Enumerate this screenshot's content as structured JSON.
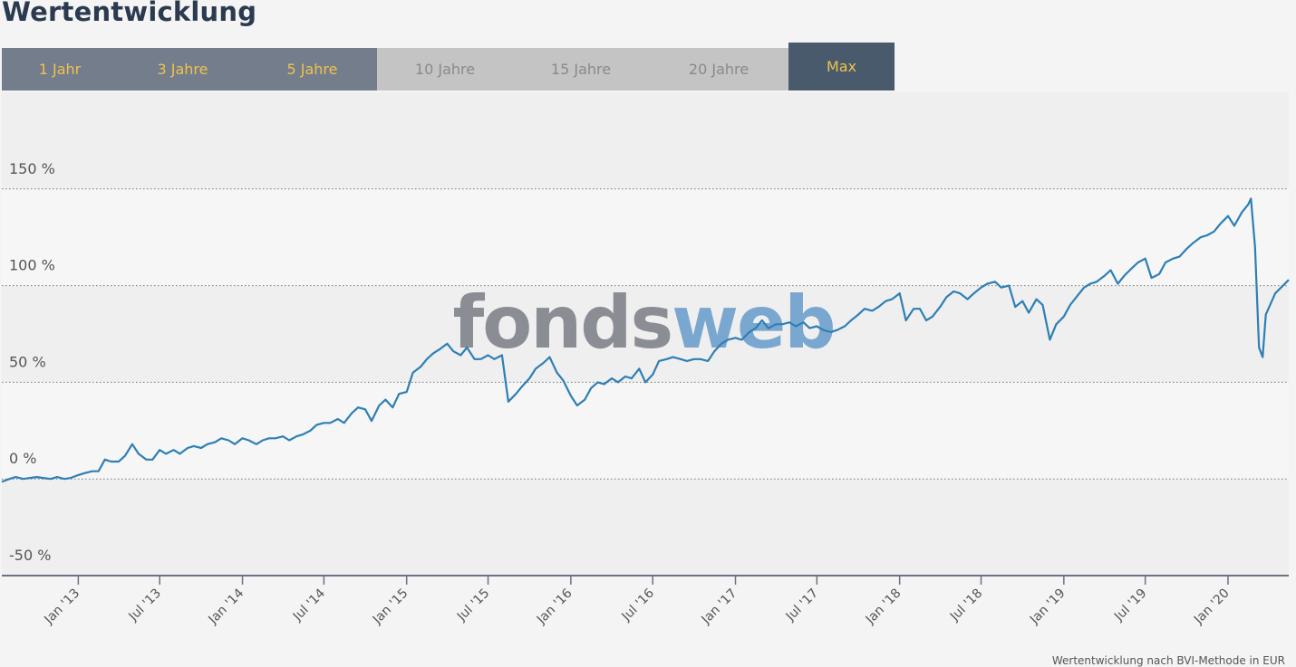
{
  "page": {
    "title": "Wertentwicklung"
  },
  "tabs": [
    {
      "label": "1 Jahr",
      "state": "enabled"
    },
    {
      "label": "3 Jahre",
      "state": "enabled"
    },
    {
      "label": "5 Jahre",
      "state": "enabled"
    },
    {
      "label": "10 Jahre",
      "state": "disabled"
    },
    {
      "label": "15 Jahre",
      "state": "disabled"
    },
    {
      "label": "20 Jahre",
      "state": "disabled"
    },
    {
      "label": "Max",
      "state": "active"
    }
  ],
  "watermark": {
    "part1": "fonds",
    "part2": "web"
  },
  "footer": {
    "note": "Wertentwicklung nach BVI-Methode in EUR"
  },
  "colors": {
    "line": "#2e7fb4",
    "band_light": "#f6f6f6",
    "band_dark": "#efefef",
    "axis": "#6a7380",
    "grid": "#777777",
    "tab_enabled": "#737d8c",
    "tab_disabled": "#c4c4c4",
    "tab_active": "#4a5a6d",
    "tab_text_active": "#f0c24b",
    "watermark_gray": "#8a8d93",
    "watermark_blue": "#7aa7cf"
  },
  "chart_data": {
    "type": "line",
    "title": "",
    "xlabel": "",
    "ylabel": "",
    "ylim": [
      -50,
      200
    ],
    "yticks": [
      -50,
      0,
      50,
      100,
      150
    ],
    "ytick_labels": [
      "-50 %",
      "0 %",
      "50 %",
      "100 %",
      "150 %"
    ],
    "grid": true,
    "xticks": [
      "2013-01-01",
      "2013-07-01",
      "2014-01-01",
      "2014-07-01",
      "2015-01-01",
      "2015-07-01",
      "2016-01-01",
      "2016-07-01",
      "2017-01-01",
      "2017-07-01",
      "2018-01-01",
      "2018-07-01",
      "2019-01-01",
      "2019-07-01",
      "2020-01-01"
    ],
    "xtick_labels": [
      "Jan '13",
      "Jul '13",
      "Jan '14",
      "Jul '14",
      "Jan '15",
      "Jul '15",
      "Jan '16",
      "Jul '16",
      "Jan '17",
      "Jul '17",
      "Jan '18",
      "Jul '18",
      "Jan '19",
      "Jul '19",
      "Jan '20"
    ],
    "xlim": [
      "2012-07-15",
      "2020-05-15"
    ],
    "series": [
      {
        "name": "",
        "points": [
          [
            "2012-07-15",
            -1.5
          ],
          [
            "2012-08-01",
            0
          ],
          [
            "2012-08-15",
            1
          ],
          [
            "2012-09-01",
            0
          ],
          [
            "2012-09-15",
            0.5
          ],
          [
            "2012-10-01",
            1
          ],
          [
            "2012-10-15",
            0.5
          ],
          [
            "2012-11-01",
            0
          ],
          [
            "2012-11-15",
            1
          ],
          [
            "2012-12-01",
            0
          ],
          [
            "2012-12-15",
            0.5
          ],
          [
            "2013-01-01",
            2
          ],
          [
            "2013-01-15",
            3
          ],
          [
            "2013-02-01",
            4
          ],
          [
            "2013-02-15",
            4
          ],
          [
            "2013-03-01",
            10
          ],
          [
            "2013-03-15",
            9
          ],
          [
            "2013-04-01",
            9
          ],
          [
            "2013-04-15",
            12
          ],
          [
            "2013-05-01",
            18
          ],
          [
            "2013-05-15",
            13
          ],
          [
            "2013-06-01",
            10
          ],
          [
            "2013-06-15",
            10
          ],
          [
            "2013-07-01",
            15
          ],
          [
            "2013-07-15",
            13
          ],
          [
            "2013-08-01",
            15
          ],
          [
            "2013-08-15",
            13
          ],
          [
            "2013-09-01",
            16
          ],
          [
            "2013-09-15",
            17
          ],
          [
            "2013-10-01",
            16
          ],
          [
            "2013-10-15",
            18
          ],
          [
            "2013-11-01",
            19
          ],
          [
            "2013-11-15",
            21
          ],
          [
            "2013-12-01",
            20
          ],
          [
            "2013-12-15",
            18
          ],
          [
            "2014-01-01",
            21
          ],
          [
            "2014-01-15",
            20
          ],
          [
            "2014-02-01",
            18
          ],
          [
            "2014-02-15",
            20
          ],
          [
            "2014-03-01",
            21
          ],
          [
            "2014-03-15",
            21
          ],
          [
            "2014-04-01",
            22
          ],
          [
            "2014-04-15",
            20
          ],
          [
            "2014-05-01",
            22
          ],
          [
            "2014-05-15",
            23
          ],
          [
            "2014-06-01",
            25
          ],
          [
            "2014-06-15",
            28
          ],
          [
            "2014-07-01",
            29
          ],
          [
            "2014-07-15",
            29
          ],
          [
            "2014-08-01",
            31
          ],
          [
            "2014-08-15",
            29
          ],
          [
            "2014-09-01",
            34
          ],
          [
            "2014-09-15",
            37
          ],
          [
            "2014-10-01",
            36
          ],
          [
            "2014-10-15",
            30
          ],
          [
            "2014-11-01",
            38
          ],
          [
            "2014-11-15",
            41
          ],
          [
            "2014-12-01",
            37
          ],
          [
            "2014-12-15",
            44
          ],
          [
            "2015-01-01",
            45
          ],
          [
            "2015-01-15",
            55
          ],
          [
            "2015-02-01",
            58
          ],
          [
            "2015-02-15",
            62
          ],
          [
            "2015-03-01",
            65
          ],
          [
            "2015-03-15",
            67
          ],
          [
            "2015-04-01",
            70
          ],
          [
            "2015-04-15",
            66
          ],
          [
            "2015-05-01",
            64
          ],
          [
            "2015-05-15",
            68
          ],
          [
            "2015-06-01",
            62
          ],
          [
            "2015-06-15",
            62
          ],
          [
            "2015-07-01",
            64
          ],
          [
            "2015-07-15",
            62
          ],
          [
            "2015-08-01",
            64
          ],
          [
            "2015-08-15",
            40
          ],
          [
            "2015-09-01",
            44
          ],
          [
            "2015-09-15",
            48
          ],
          [
            "2015-10-01",
            52
          ],
          [
            "2015-10-15",
            57
          ],
          [
            "2015-11-01",
            60
          ],
          [
            "2015-11-15",
            63
          ],
          [
            "2015-12-01",
            55
          ],
          [
            "2015-12-15",
            51
          ],
          [
            "2016-01-01",
            43
          ],
          [
            "2016-01-15",
            38
          ],
          [
            "2016-02-01",
            41
          ],
          [
            "2016-02-15",
            47
          ],
          [
            "2016-03-01",
            50
          ],
          [
            "2016-03-15",
            49
          ],
          [
            "2016-04-01",
            52
          ],
          [
            "2016-04-15",
            50
          ],
          [
            "2016-05-01",
            53
          ],
          [
            "2016-05-15",
            52
          ],
          [
            "2016-06-01",
            57
          ],
          [
            "2016-06-15",
            50
          ],
          [
            "2016-07-01",
            54
          ],
          [
            "2016-07-15",
            61
          ],
          [
            "2016-08-01",
            62
          ],
          [
            "2016-08-15",
            63
          ],
          [
            "2016-09-01",
            62
          ],
          [
            "2016-09-15",
            61
          ],
          [
            "2016-10-01",
            62
          ],
          [
            "2016-10-15",
            62
          ],
          [
            "2016-11-01",
            61
          ],
          [
            "2016-11-15",
            66
          ],
          [
            "2016-12-01",
            70
          ],
          [
            "2016-12-15",
            72
          ],
          [
            "2017-01-01",
            73
          ],
          [
            "2017-01-15",
            72
          ],
          [
            "2017-02-01",
            76
          ],
          [
            "2017-02-15",
            78
          ],
          [
            "2017-03-01",
            82
          ],
          [
            "2017-03-15",
            78
          ],
          [
            "2017-04-01",
            80
          ],
          [
            "2017-04-15",
            80
          ],
          [
            "2017-05-01",
            81
          ],
          [
            "2017-05-15",
            79
          ],
          [
            "2017-06-01",
            81
          ],
          [
            "2017-06-15",
            78
          ],
          [
            "2017-07-01",
            79
          ],
          [
            "2017-07-15",
            77
          ],
          [
            "2017-08-01",
            76
          ],
          [
            "2017-08-15",
            77
          ],
          [
            "2017-09-01",
            79
          ],
          [
            "2017-09-15",
            82
          ],
          [
            "2017-10-01",
            85
          ],
          [
            "2017-10-15",
            88
          ],
          [
            "2017-11-01",
            87
          ],
          [
            "2017-11-15",
            89
          ],
          [
            "2017-12-01",
            92
          ],
          [
            "2017-12-15",
            93
          ],
          [
            "2018-01-01",
            96
          ],
          [
            "2018-01-15",
            82
          ],
          [
            "2018-02-01",
            88
          ],
          [
            "2018-02-15",
            88
          ],
          [
            "2018-03-01",
            82
          ],
          [
            "2018-03-15",
            84
          ],
          [
            "2018-04-01",
            89
          ],
          [
            "2018-04-15",
            94
          ],
          [
            "2018-05-01",
            97
          ],
          [
            "2018-05-15",
            96
          ],
          [
            "2018-06-01",
            93
          ],
          [
            "2018-06-15",
            96
          ],
          [
            "2018-07-01",
            99
          ],
          [
            "2018-07-15",
            101
          ],
          [
            "2018-08-01",
            102
          ],
          [
            "2018-08-15",
            99
          ],
          [
            "2018-09-01",
            100
          ],
          [
            "2018-09-15",
            89
          ],
          [
            "2018-10-01",
            92
          ],
          [
            "2018-10-15",
            86
          ],
          [
            "2018-11-01",
            93
          ],
          [
            "2018-11-15",
            90
          ],
          [
            "2018-12-01",
            72
          ],
          [
            "2018-12-15",
            80
          ],
          [
            "2019-01-01",
            84
          ],
          [
            "2019-01-15",
            90
          ],
          [
            "2019-02-01",
            95
          ],
          [
            "2019-02-15",
            99
          ],
          [
            "2019-03-01",
            101
          ],
          [
            "2019-03-15",
            102
          ],
          [
            "2019-04-01",
            105
          ],
          [
            "2019-04-15",
            108
          ],
          [
            "2019-05-01",
            101
          ],
          [
            "2019-05-15",
            105
          ],
          [
            "2019-06-01",
            109
          ],
          [
            "2019-06-15",
            112
          ],
          [
            "2019-07-01",
            114
          ],
          [
            "2019-07-15",
            104
          ],
          [
            "2019-08-01",
            106
          ],
          [
            "2019-08-15",
            112
          ],
          [
            "2019-09-01",
            114
          ],
          [
            "2019-09-15",
            115
          ],
          [
            "2019-10-01",
            119
          ],
          [
            "2019-10-15",
            122
          ],
          [
            "2019-11-01",
            125
          ],
          [
            "2019-11-15",
            126
          ],
          [
            "2019-12-01",
            128
          ],
          [
            "2019-12-15",
            132
          ],
          [
            "2020-01-01",
            136
          ],
          [
            "2020-01-15",
            131
          ],
          [
            "2020-02-01",
            138
          ],
          [
            "2020-02-15",
            142
          ],
          [
            "2020-02-21",
            145
          ],
          [
            "2020-03-01",
            120
          ],
          [
            "2020-03-10",
            68
          ],
          [
            "2020-03-18",
            63
          ],
          [
            "2020-03-25",
            85
          ],
          [
            "2020-04-15",
            96
          ],
          [
            "2020-05-15",
            103
          ]
        ]
      }
    ]
  }
}
